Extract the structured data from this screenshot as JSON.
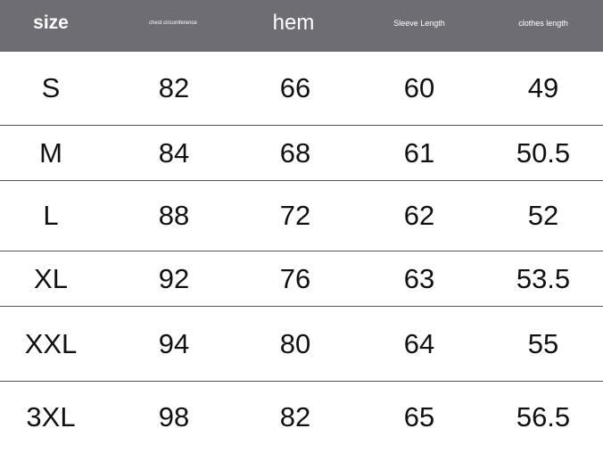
{
  "header": [
    "size",
    "chest circumference",
    "hem",
    "Sleeve Length",
    "clothes length"
  ],
  "rows": [
    [
      "S",
      "82",
      "66",
      "60",
      "49"
    ],
    [
      "M",
      "84",
      "68",
      "61",
      "50.5"
    ],
    [
      "L",
      "88",
      "72",
      "62",
      "52"
    ],
    [
      "XL",
      "92",
      "76",
      "63",
      "53.5"
    ],
    [
      "XXL",
      "94",
      "80",
      "64",
      "55"
    ],
    [
      "3XL",
      "98",
      "82",
      "65",
      "56.5"
    ]
  ],
  "colors": {
    "header_bg": "#6e6d73"
  }
}
